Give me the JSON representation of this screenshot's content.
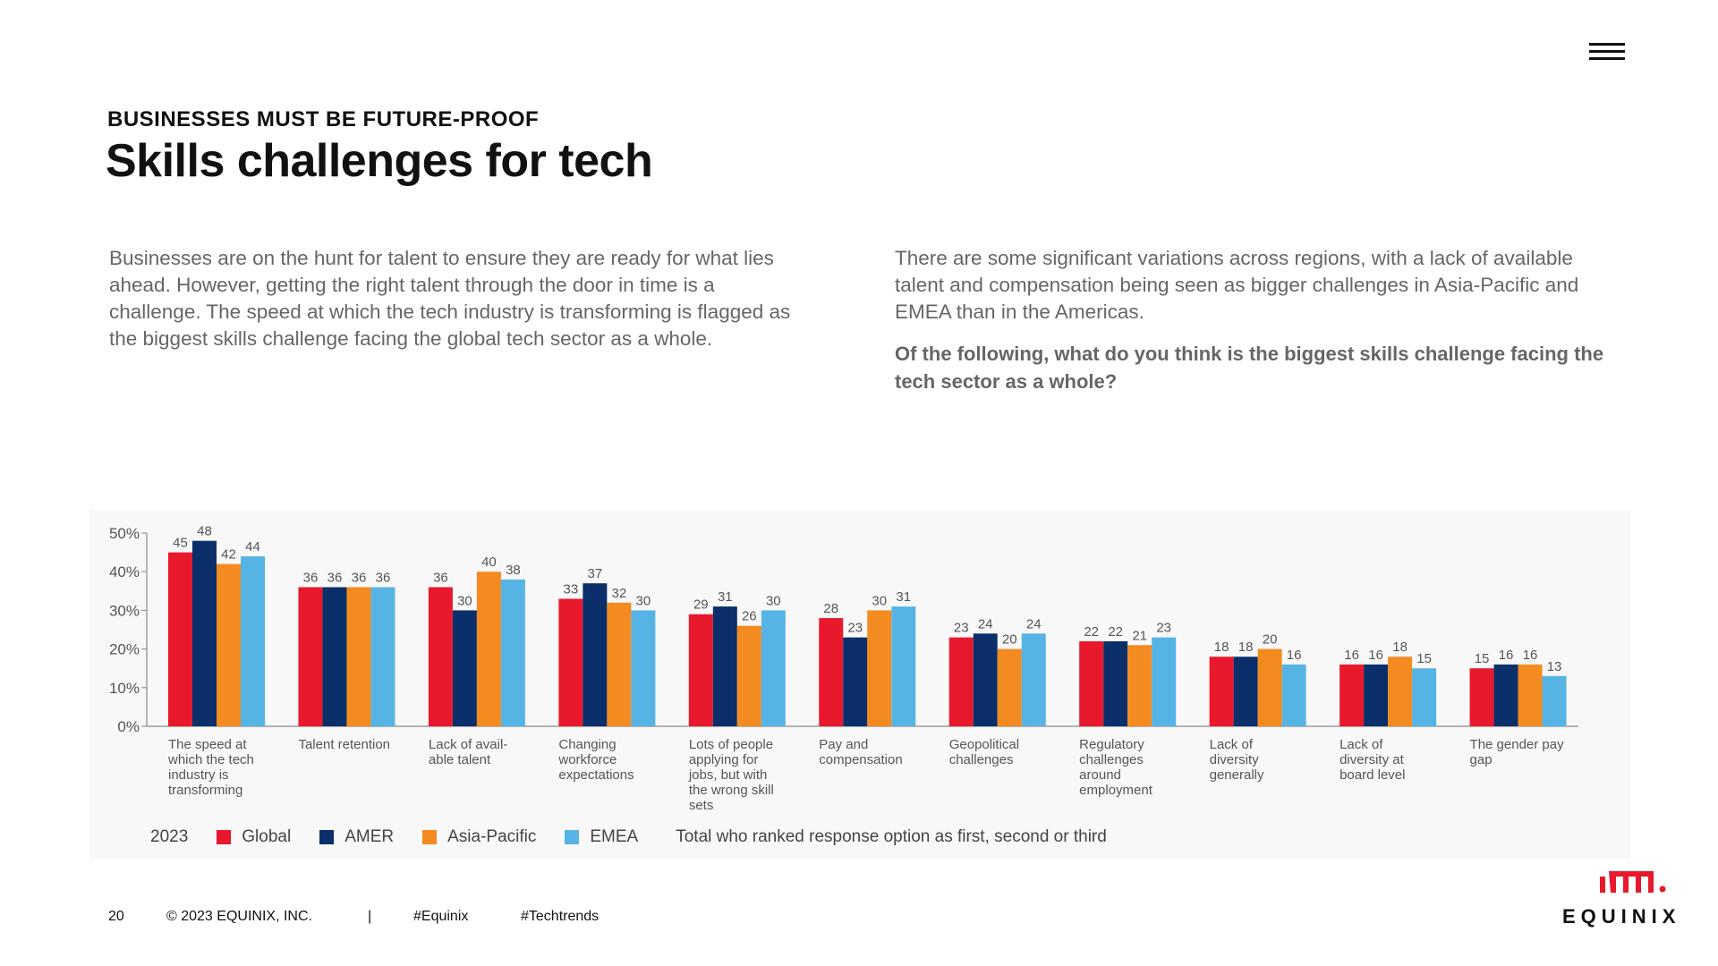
{
  "header": {
    "kicker": "BUSINESSES MUST BE FUTURE-PROOF",
    "title": "Skills challenges for tech"
  },
  "intro": {
    "left": "Businesses are on the hunt for talent to ensure they are ready for what lies ahead. However, getting the right talent through the door in time is a challenge. The speed at which the tech industry is transforming is flagged as the biggest skills challenge facing the global tech sector as a whole.",
    "right": "There are some significant variations across regions, with a lack of available talent and compensation being seen as bigger challenges in Asia-Pacific and EMEA than in the Americas.",
    "question": "Of the following, what do you think is the biggest skills challenge facing the tech sector as a whole?"
  },
  "legend": {
    "year": "2023",
    "note": "Total who ranked response option as first, second or third"
  },
  "colors": {
    "Global": "#e8192c",
    "AMER": "#0b2f6b",
    "Asia-Pacific": "#f38b20",
    "EMEA": "#56b4e5"
  },
  "chart_data": {
    "type": "bar",
    "categories": [
      "The speed at which the tech industry is transforming",
      "Talent retention",
      "Lack of avail-able talent",
      "Changing workforce expectations",
      "Lots of people applying for jobs, but with the wrong skill sets",
      "Pay and compensation",
      "Geopolitical challenges",
      "Regulatory challenges around employment",
      "Lack of diversity generally",
      "Lack of diversity at board level",
      "The gender pay gap"
    ],
    "category_lines": [
      [
        "The speed at",
        "which the tech",
        "industry is",
        "transforming"
      ],
      [
        "Talent retention"
      ],
      [
        "Lack of avail-",
        "able talent"
      ],
      [
        "Changing",
        "workforce",
        "expectations"
      ],
      [
        "Lots of people",
        "applying for",
        "jobs, but with",
        "the wrong skill",
        "sets"
      ],
      [
        "Pay and",
        "compensation"
      ],
      [
        "Geopolitical",
        "challenges"
      ],
      [
        "Regulatory",
        "challenges",
        "around",
        "employment"
      ],
      [
        "Lack of",
        "diversity",
        "generally"
      ],
      [
        "Lack of",
        "diversity at",
        "board level"
      ],
      [
        "The gender pay",
        "gap"
      ]
    ],
    "series": [
      {
        "name": "Global",
        "values": [
          45,
          36,
          36,
          33,
          29,
          28,
          23,
          22,
          18,
          16,
          15
        ]
      },
      {
        "name": "AMER",
        "values": [
          48,
          36,
          30,
          37,
          31,
          23,
          24,
          22,
          18,
          16,
          16
        ]
      },
      {
        "name": "Asia-Pacific",
        "values": [
          42,
          36,
          40,
          32,
          26,
          30,
          20,
          21,
          20,
          18,
          16
        ]
      },
      {
        "name": "EMEA",
        "values": [
          44,
          36,
          38,
          30,
          30,
          31,
          24,
          23,
          16,
          15,
          13
        ]
      }
    ],
    "yticks": [
      "0%",
      "10%",
      "20%",
      "30%",
      "40%",
      "50%"
    ],
    "ylim": [
      0,
      50
    ],
    "grid": false,
    "legend_position": "bottom"
  },
  "footer": {
    "page": "20",
    "copyright": "© 2023 EQUINIX, INC.",
    "separator": "|",
    "tag1": "#Equinix",
    "tag2": "#Techtrends"
  },
  "logo": {
    "wordmark": "EQUINIX"
  }
}
